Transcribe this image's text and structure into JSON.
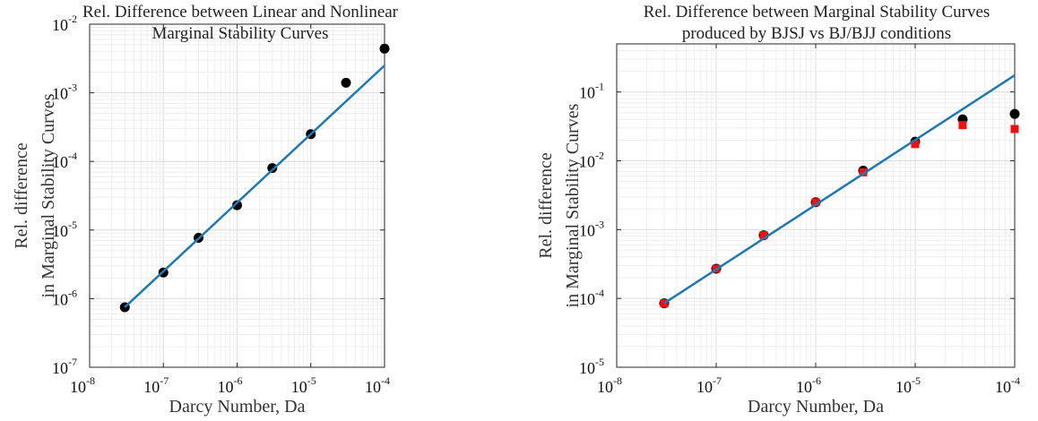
{
  "chart_data": [
    {
      "type": "scatter",
      "title": [
        "Rel. Difference between Linear and Nonlinear",
        "Marginal Stability Curves"
      ],
      "xlabel": "Darcy Number, Da",
      "ylabel": [
        "Rel. difference",
        "in Marginal Stability Curves"
      ],
      "xscale": "log",
      "yscale": "log",
      "xlim": [
        1e-08,
        0.0001
      ],
      "ylim": [
        1e-07,
        0.01
      ],
      "xticks": [
        {
          "base": "10",
          "exp": "-8",
          "value": 1e-08
        },
        {
          "base": "10",
          "exp": "-7",
          "value": 1e-07
        },
        {
          "base": "10",
          "exp": "-6",
          "value": 1e-06
        },
        {
          "base": "10",
          "exp": "-5",
          "value": 1e-05
        },
        {
          "base": "10",
          "exp": "-4",
          "value": 0.0001
        }
      ],
      "yticks": [
        {
          "base": "10",
          "exp": "-7",
          "value": 1e-07
        },
        {
          "base": "10",
          "exp": "-6",
          "value": 1e-06
        },
        {
          "base": "10",
          "exp": "-5",
          "value": 1e-05
        },
        {
          "base": "10",
          "exp": "-4",
          "value": 0.0001
        },
        {
          "base": "10",
          "exp": "-3",
          "value": 0.001
        },
        {
          "base": "10",
          "exp": "-2",
          "value": 0.01
        }
      ],
      "grid": true,
      "series": [
        {
          "marker": "circle",
          "color": "#000000",
          "x": [
            3e-08,
            1e-07,
            3e-07,
            1e-06,
            3e-06,
            1e-05,
            3e-05,
            0.0001
          ],
          "y": [
            7.5e-07,
            2.4e-06,
            7.7e-06,
            2.3e-05,
            8e-05,
            0.00025,
            0.0014,
            0.0044
          ]
        },
        {
          "marker": "line",
          "color": "#1f77b4",
          "x": [
            3e-08,
            0.0001
          ],
          "y": [
            7.5e-07,
            0.0025
          ]
        }
      ]
    },
    {
      "type": "scatter",
      "title": [
        "Rel. Difference between Marginal Stability Curves",
        "produced by BJSJ vs BJ/BJJ conditions"
      ],
      "xlabel": "Darcy Number, Da",
      "ylabel": [
        "Rel. difference",
        "in Marginal Stability Curves"
      ],
      "xscale": "log",
      "yscale": "log",
      "xlim": [
        1e-08,
        0.0001
      ],
      "ylim": [
        1e-05,
        0.5
      ],
      "xticks": [
        {
          "base": "10",
          "exp": "-8",
          "value": 1e-08
        },
        {
          "base": "10",
          "exp": "-7",
          "value": 1e-07
        },
        {
          "base": "10",
          "exp": "-6",
          "value": 1e-06
        },
        {
          "base": "10",
          "exp": "-5",
          "value": 1e-05
        },
        {
          "base": "10",
          "exp": "-4",
          "value": 0.0001
        }
      ],
      "yticks": [
        {
          "base": "10",
          "exp": "-5",
          "value": 1e-05
        },
        {
          "base": "10",
          "exp": "-4",
          "value": 0.0001
        },
        {
          "base": "10",
          "exp": "-3",
          "value": 0.001
        },
        {
          "base": "10",
          "exp": "-2",
          "value": 0.01
        },
        {
          "base": "10",
          "exp": "-1",
          "value": 0.1
        }
      ],
      "grid": true,
      "series": [
        {
          "marker": "circle",
          "color": "#000000",
          "x": [
            3e-08,
            1e-07,
            3e-07,
            1e-06,
            3e-06,
            1e-05,
            3e-05,
            0.0001
          ],
          "y": [
            8.5e-05,
            0.00027,
            0.00083,
            0.0025,
            0.0072,
            0.019,
            0.04,
            0.048
          ]
        },
        {
          "marker": "square",
          "color": "#ee1111",
          "x": [
            3e-08,
            1e-07,
            3e-07,
            1e-06,
            3e-06,
            1e-05,
            3e-05,
            0.0001
          ],
          "y": [
            8.5e-05,
            0.00027,
            0.00083,
            0.0025,
            0.0068,
            0.0175,
            0.033,
            0.029
          ]
        },
        {
          "marker": "line",
          "color": "#1f77b4",
          "x": [
            3e-08,
            0.0001
          ],
          "y": [
            8.5e-05,
            0.175
          ]
        }
      ]
    }
  ]
}
